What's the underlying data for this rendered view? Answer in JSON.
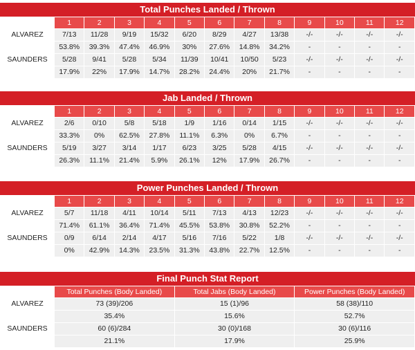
{
  "rounds": [
    "1",
    "2",
    "3",
    "4",
    "5",
    "6",
    "7",
    "8",
    "9",
    "10",
    "11",
    "12"
  ],
  "sections": [
    {
      "title": "Total Punches Landed / Thrown",
      "fighters": [
        {
          "name": "ALVAREZ",
          "landed": [
            "7/13",
            "11/28",
            "9/19",
            "15/32",
            "6/20",
            "8/29",
            "4/27",
            "13/38",
            "-/-",
            "-/-",
            "-/-",
            "-/-"
          ],
          "pct": [
            "53.8%",
            "39.3%",
            "47.4%",
            "46.9%",
            "30%",
            "27.6%",
            "14.8%",
            "34.2%",
            "-",
            "-",
            "-",
            "-"
          ]
        },
        {
          "name": "SAUNDERS",
          "landed": [
            "5/28",
            "9/41",
            "5/28",
            "5/34",
            "11/39",
            "10/41",
            "10/50",
            "5/23",
            "-/-",
            "-/-",
            "-/-",
            "-/-"
          ],
          "pct": [
            "17.9%",
            "22%",
            "17.9%",
            "14.7%",
            "28.2%",
            "24.4%",
            "20%",
            "21.7%",
            "-",
            "-",
            "-",
            "-"
          ]
        }
      ]
    },
    {
      "title": "Jab Landed / Thrown",
      "fighters": [
        {
          "name": "ALVAREZ",
          "landed": [
            "2/6",
            "0/10",
            "5/8",
            "5/18",
            "1/9",
            "1/16",
            "0/14",
            "1/15",
            "-/-",
            "-/-",
            "-/-",
            "-/-"
          ],
          "pct": [
            "33.3%",
            "0%",
            "62.5%",
            "27.8%",
            "11.1%",
            "6.3%",
            "0%",
            "6.7%",
            "-",
            "-",
            "-",
            "-"
          ]
        },
        {
          "name": "SAUNDERS",
          "landed": [
            "5/19",
            "3/27",
            "3/14",
            "1/17",
            "6/23",
            "3/25",
            "5/28",
            "4/15",
            "-/-",
            "-/-",
            "-/-",
            "-/-"
          ],
          "pct": [
            "26.3%",
            "11.1%",
            "21.4%",
            "5.9%",
            "26.1%",
            "12%",
            "17.9%",
            "26.7%",
            "-",
            "-",
            "-",
            "-"
          ]
        }
      ]
    },
    {
      "title": "Power Punches Landed / Thrown",
      "fighters": [
        {
          "name": "ALVAREZ",
          "landed": [
            "5/7",
            "11/18",
            "4/11",
            "10/14",
            "5/11",
            "7/13",
            "4/13",
            "12/23",
            "-/-",
            "-/-",
            "-/-",
            "-/-"
          ],
          "pct": [
            "71.4%",
            "61.1%",
            "36.4%",
            "71.4%",
            "45.5%",
            "53.8%",
            "30.8%",
            "52.2%",
            "-",
            "-",
            "-",
            "-"
          ]
        },
        {
          "name": "SAUNDERS",
          "landed": [
            "0/9",
            "6/14",
            "2/14",
            "4/17",
            "5/16",
            "7/16",
            "5/22",
            "1/8",
            "-/-",
            "-/-",
            "-/-",
            "-/-"
          ],
          "pct": [
            "0%",
            "42.9%",
            "14.3%",
            "23.5%",
            "31.3%",
            "43.8%",
            "22.7%",
            "12.5%",
            "-",
            "-",
            "-",
            "-"
          ]
        }
      ]
    }
  ],
  "final": {
    "title": "Final Punch Stat Report",
    "headers": [
      "Total Punches (Body Landed)",
      "Total Jabs (Body Landed)",
      "Power Punches (Body Landed)"
    ],
    "fighters": [
      {
        "name": "ALVAREZ",
        "values": [
          "73 (39)/206",
          "15 (1)/96",
          "58 (38)/110"
        ],
        "pct": [
          "35.4%",
          "15.6%",
          "52.7%"
        ]
      },
      {
        "name": "SAUNDERS",
        "values": [
          "60 (6)/284",
          "30 (0)/168",
          "30 (6)/116"
        ],
        "pct": [
          "21.1%",
          "17.9%",
          "25.9%"
        ]
      }
    ]
  },
  "colors": {
    "title_bg": "#d41f26",
    "header_bg": "#e84a4a",
    "cell_bg": "#efefef"
  }
}
